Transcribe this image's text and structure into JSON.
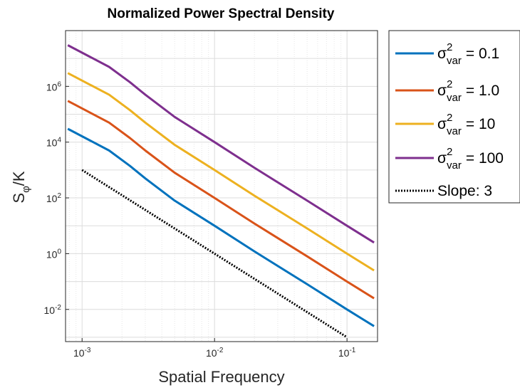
{
  "chart_data": {
    "type": "line",
    "title": "Normalized Power Spectral Density",
    "xlabel": "Spatial Frequency",
    "ylabel": "S_phi/K",
    "ylabel_main": "S",
    "ylabel_sub": "φ",
    "ylabel_tail": "/K",
    "xscale": "log",
    "yscale": "log",
    "xlim": [
      0.00075,
      0.17
    ],
    "ylim": [
      0.0007,
      100000000
    ],
    "grid": true,
    "minor_grid": true,
    "legend_position": "outside-right-top",
    "x_ticks": [
      {
        "value": 0.001,
        "base": "10",
        "exp": "-3"
      },
      {
        "value": 0.01,
        "base": "10",
        "exp": "-2"
      },
      {
        "value": 0.1,
        "base": "10",
        "exp": "-1"
      }
    ],
    "y_ticks": [
      {
        "value": 0.01,
        "base": "10",
        "exp": "-2"
      },
      {
        "value": 1,
        "base": "10",
        "exp": "0"
      },
      {
        "value": 100,
        "base": "10",
        "exp": "2"
      },
      {
        "value": 10000,
        "base": "10",
        "exp": "4"
      },
      {
        "value": 1000000,
        "base": "10",
        "exp": "6"
      }
    ],
    "series": [
      {
        "name": "σ²var = 0.1",
        "label_prefix": "σ",
        "label_sup": "2",
        "label_sub": "var",
        "label_value": "= 0.1",
        "color": "#0072BD",
        "style": "solid",
        "x": [
          0.00078,
          0.0016,
          0.0023,
          0.003,
          0.005,
          0.01,
          0.02,
          0.05,
          0.1,
          0.16
        ],
        "y": [
          30000,
          5000,
          1400,
          500,
          80,
          10,
          1.2,
          0.08,
          0.01,
          0.0025
        ]
      },
      {
        "name": "σ²var = 1.0",
        "label_prefix": "σ",
        "label_sup": "2",
        "label_sub": "var",
        "label_value": "= 1.0",
        "color": "#D95319",
        "style": "solid",
        "x": [
          0.00078,
          0.0016,
          0.0023,
          0.003,
          0.005,
          0.01,
          0.02,
          0.05,
          0.1,
          0.16
        ],
        "y": [
          300000,
          50000,
          14000,
          5000,
          800,
          100,
          12,
          0.8,
          0.1,
          0.025
        ]
      },
      {
        "name": "σ²var = 10",
        "label_prefix": "σ",
        "label_sup": "2",
        "label_sub": "var",
        "label_value": "= 10",
        "color": "#EDB120",
        "style": "solid",
        "x": [
          0.00078,
          0.0016,
          0.0023,
          0.003,
          0.005,
          0.01,
          0.02,
          0.05,
          0.1,
          0.16
        ],
        "y": [
          3000000,
          500000,
          140000,
          50000,
          8000,
          1000,
          120,
          8,
          1,
          0.25
        ]
      },
      {
        "name": "σ²var = 100",
        "label_prefix": "σ",
        "label_sup": "2",
        "label_sub": "var",
        "label_value": "= 100",
        "color": "#7E2F8E",
        "style": "solid",
        "x": [
          0.00078,
          0.0016,
          0.0023,
          0.003,
          0.005,
          0.01,
          0.02,
          0.05,
          0.1,
          0.16
        ],
        "y": [
          30000000,
          5000000,
          1400000,
          500000,
          80000,
          10000,
          1200,
          80,
          10,
          2.5
        ]
      },
      {
        "name": "Slope: 3",
        "label_text": "Slope: 3",
        "color": "#000000",
        "style": "dotted",
        "x": [
          0.001,
          0.1
        ],
        "y": [
          1000,
          0.001
        ]
      }
    ]
  }
}
